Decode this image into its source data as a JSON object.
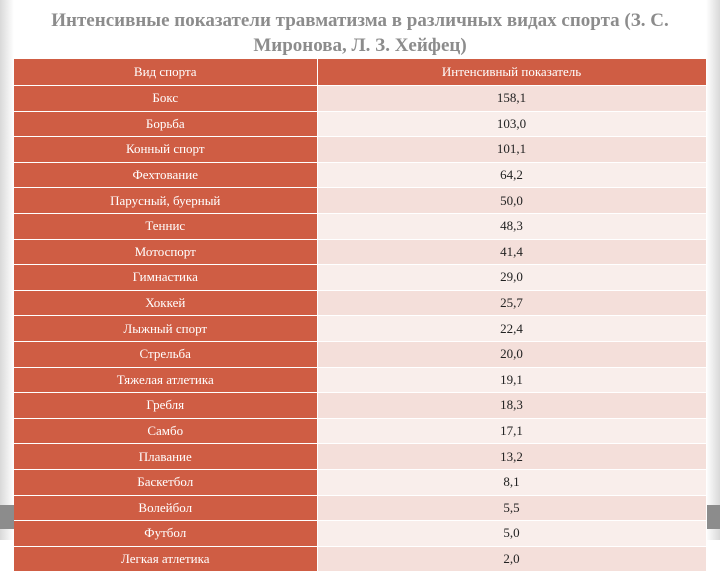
{
  "title": "Интенсивные показатели травматизма в различных видах спорта (З. С. Миронова, Л. З. Хейфец)",
  "table": {
    "headers": [
      "Вид спорта",
      "Интенсивный показатель"
    ],
    "rows": [
      [
        "Бокс",
        "158,1"
      ],
      [
        "Борьба",
        "103,0"
      ],
      [
        "Конный спорт",
        "101,1"
      ],
      [
        "Фехтование",
        "64,2"
      ],
      [
        "Парусный, буерный",
        "50,0"
      ],
      [
        "Теннис",
        "48,3"
      ],
      [
        "Мотоспорт",
        "41,4"
      ],
      [
        "Гимнастика",
        "29,0"
      ],
      [
        "Хоккей",
        "25,7"
      ],
      [
        "Лыжный спорт",
        "22,4"
      ],
      [
        "Стрельба",
        "20,0"
      ],
      [
        "Тяжелая атлетика",
        "19,1"
      ],
      [
        "Гребля",
        "18,3"
      ],
      [
        "Самбо",
        "17,1"
      ],
      [
        "Плавание",
        "13,2"
      ],
      [
        "Баскетбол",
        "8,1"
      ],
      [
        "Волейбол",
        "5,5"
      ],
      [
        "Футбол",
        "5,0"
      ],
      [
        "Легкая атлетика",
        "2,0"
      ]
    ]
  }
}
